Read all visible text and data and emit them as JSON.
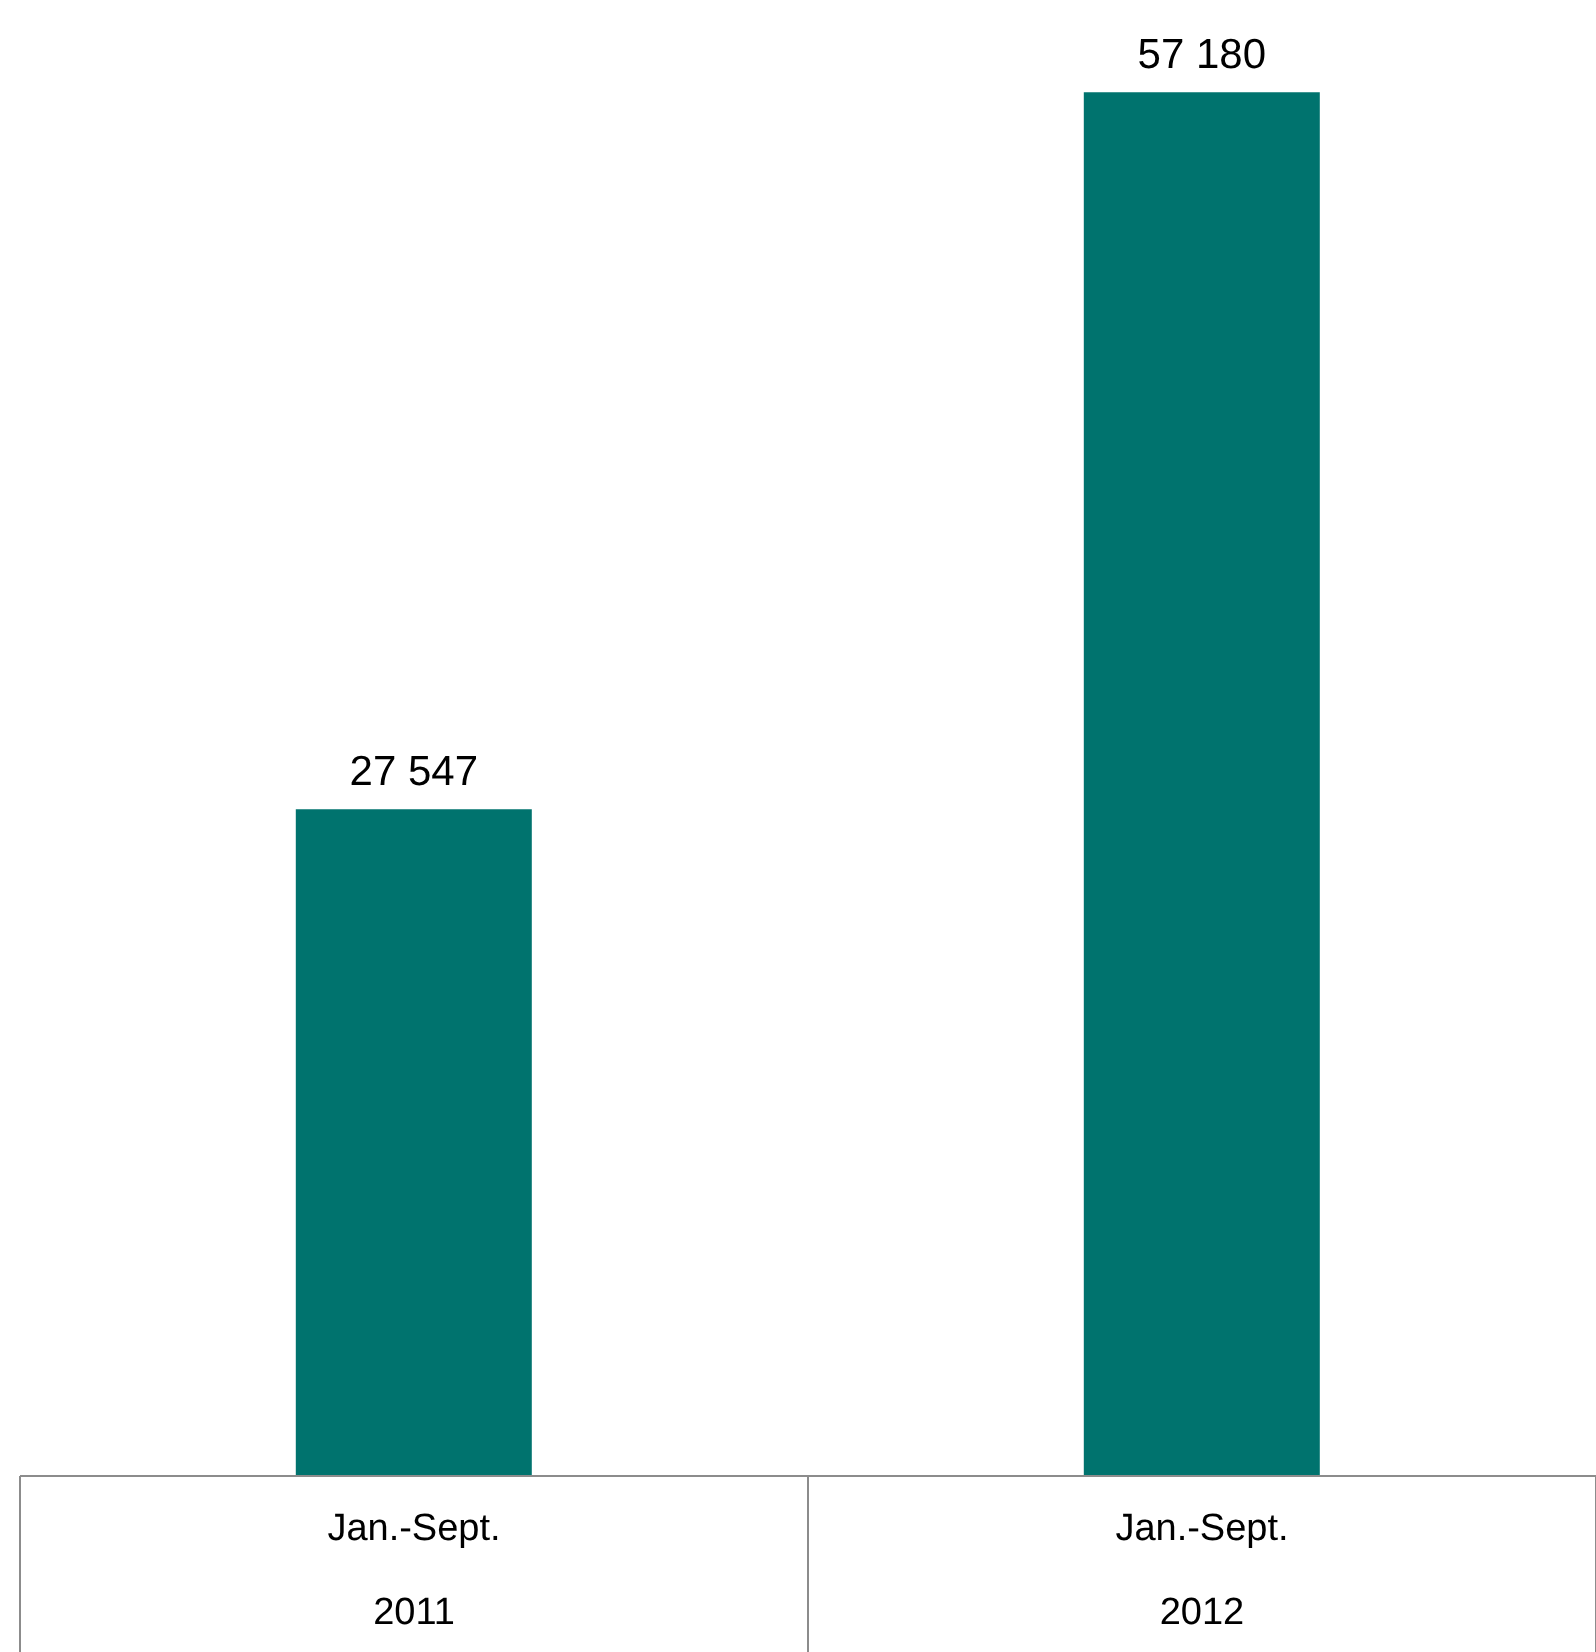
{
  "chart_data": {
    "type": "bar",
    "categories": [
      "Jan.-Sept.\n2011",
      "Jan.-Sept.\n2012"
    ],
    "values": [
      27547,
      57180
    ],
    "value_labels": [
      "27 547",
      "57 180"
    ],
    "color": "#00736e",
    "ylim": [
      0,
      60000
    ]
  }
}
